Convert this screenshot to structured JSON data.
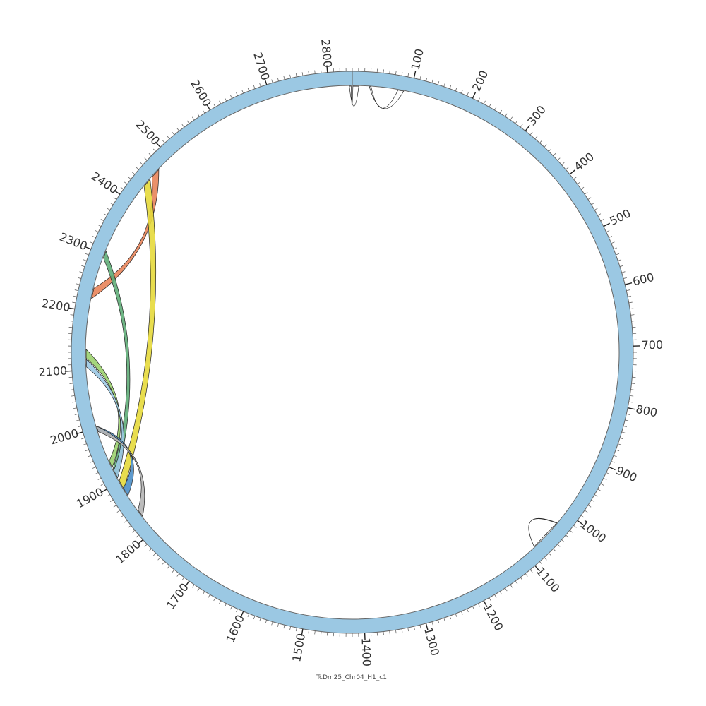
{
  "chart_data": {
    "type": "circos",
    "chromosome_label": "TcDm25_Chr04_H1_c1",
    "length": 2840,
    "ring_color": "#9bc8e3",
    "ring_stroke": "#666666",
    "tick_labels": [
      "100",
      "200",
      "300",
      "400",
      "500",
      "600",
      "700",
      "800",
      "900",
      "1000",
      "1100",
      "1200",
      "1300",
      "1400",
      "1500",
      "1600",
      "1700",
      "1800",
      "1900",
      "2000",
      "2100",
      "2200",
      "2300",
      "2400",
      "2500",
      "2600",
      "2700",
      "2800"
    ],
    "links": [
      {
        "color": "#ffffff",
        "a": [
          2841,
          2851
        ],
        "b": [
          2835,
          2838
        ]
      },
      {
        "color": "#ffffff",
        "a": [
          78,
          88
        ],
        "b": [
          2869,
          2872
        ]
      },
      {
        "color": "#e8845a",
        "a": [
          2455,
          2472
        ],
        "b": [
          2222,
          2240
        ]
      },
      {
        "color": "#e6d93b",
        "a": [
          2434,
          2450
        ],
        "b": [
          1886,
          1902
        ]
      },
      {
        "color": "#5fad78",
        "a": [
          2294,
          2306
        ],
        "b": [
          1911,
          1925
        ]
      },
      {
        "color": "#9bd06e",
        "a": [
          2120,
          2135
        ],
        "b": [
          1928,
          1940
        ]
      },
      {
        "color": "#9bc8e3",
        "a": [
          2105,
          2118
        ],
        "b": [
          1908,
          1922
        ]
      },
      {
        "color": "#4c8fc8",
        "a": [
          1873,
          1888
        ],
        "b": [
          1993,
          2003
        ]
      },
      {
        "color": "#b5b5b5",
        "a": [
          1830,
          1843
        ],
        "b": [
          1993,
          2003
        ]
      },
      {
        "color": "#ffffff",
        "a": [
          1025,
          1080
        ],
        "b": [
          1024,
          1080
        ]
      }
    ]
  }
}
